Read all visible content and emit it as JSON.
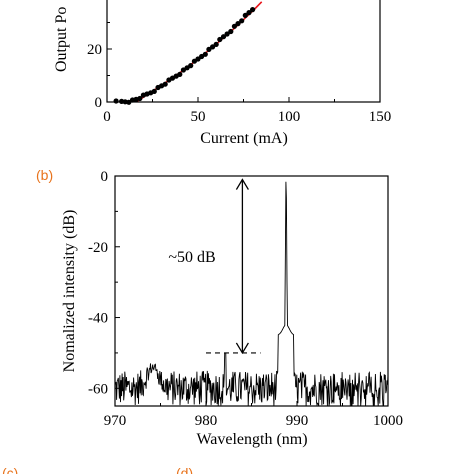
{
  "chart_data": [
    {
      "type": "scatter",
      "panel_label": "",
      "xlabel": "Current (mA)",
      "ylabel": "Output Po",
      "xlim": [
        0,
        150
      ],
      "ylim": [
        0,
        40
      ],
      "xticks": [
        "0",
        "50",
        "100",
        "150"
      ],
      "yticks": [
        "0",
        "20"
      ],
      "series": [
        {
          "kind": "points",
          "x": [
            5,
            8,
            10,
            12,
            14,
            16,
            18,
            20,
            22,
            24,
            26,
            28,
            30,
            32,
            34,
            36,
            38,
            40,
            42,
            44,
            46,
            48,
            50,
            52,
            54,
            56,
            58,
            60,
            62,
            64,
            66,
            68,
            70,
            72,
            74,
            76,
            78,
            80
          ],
          "y": [
            0,
            0.1,
            0.2,
            0.3,
            0.5,
            1.0,
            1.6,
            2.2,
            2.9,
            3.6,
            4.4,
            5.2,
            6.1,
            7.0,
            7.9,
            8.9,
            9.9,
            10.8,
            11.8,
            12.9,
            14.0,
            15.0,
            16.1,
            17.3,
            18.4,
            19.6,
            20.8,
            22.0,
            23.2,
            24.5,
            25.8,
            27.0,
            28.3,
            29.6,
            30.9,
            32.3,
            33.6,
            35.0
          ]
        },
        {
          "kind": "fit-line",
          "x": [
            16,
            20,
            30,
            40,
            50,
            60,
            70,
            80,
            85
          ],
          "y": [
            0,
            1.8,
            6.3,
            11.0,
            16.2,
            21.8,
            27.8,
            34.3,
            37.8
          ]
        }
      ]
    },
    {
      "type": "line",
      "panel_label": "(b)",
      "xlabel": "Wavelength (nm)",
      "ylabel": "Nomalized intensity (dB)",
      "xlim": [
        970,
        1000
      ],
      "ylim": [
        -65,
        0
      ],
      "xticks": [
        "970",
        "980",
        "990",
        "1000"
      ],
      "yticks": [
        "0",
        "-20",
        "-40",
        "-60"
      ],
      "annotation": "~50 dB",
      "annotation_arrow": {
        "x": 984,
        "y_top": -1,
        "y_bottom": -50
      },
      "reference_line": {
        "x": [
          980,
          986
        ],
        "y": -50
      },
      "series": [
        {
          "kind": "spectrum",
          "peak_x": 988.8,
          "peak_y": 0
        }
      ]
    }
  ],
  "bottom_labels": [
    "(c)",
    "(d)"
  ],
  "colors": {
    "axis": "#000000",
    "fit": "#e8151b",
    "points": "#000000",
    "panel_label": "#e8731c"
  }
}
